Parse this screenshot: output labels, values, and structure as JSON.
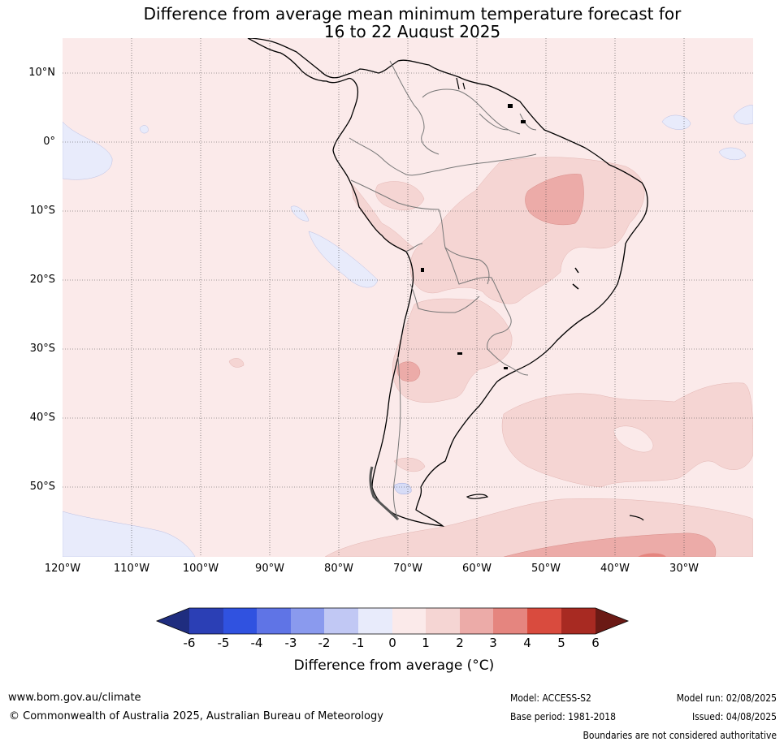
{
  "title": {
    "line1": "Difference from average mean minimum temperature forecast for",
    "line2": "16 to 22 August 2025"
  },
  "map": {
    "region": "South America",
    "latitude_labels": [
      "10°N",
      "0°",
      "10°S",
      "20°S",
      "30°S",
      "40°S",
      "50°S"
    ],
    "longitude_labels": [
      "120°W",
      "110°W",
      "100°W",
      "90°W",
      "80°W",
      "70°W",
      "60°W",
      "50°W",
      "40°W",
      "30°W"
    ],
    "background_anomaly_color": "#fbeaea"
  },
  "colorbar": {
    "ticks": [
      "-6",
      "-5",
      "-4",
      "-3",
      "-2",
      "-1",
      "0",
      "1",
      "2",
      "3",
      "4",
      "5",
      "6"
    ],
    "colors": [
      "#1f2d7f",
      "#2b3fb5",
      "#3052e0",
      "#5f74e6",
      "#8a9aee",
      "#c1c8f4",
      "#e8ebfb",
      "#fbeaea",
      "#f5d5d3",
      "#ecaba8",
      "#e5857f",
      "#d94b3e",
      "#a82a22",
      "#6b1a15"
    ],
    "label": "Difference from average (°C)"
  },
  "footer": {
    "website": "www.bom.gov.au/climate",
    "copyright": "© Commonwealth of Australia 2025, Australian Bureau of Meteorology",
    "model": "Model: ACCESS-S2",
    "base_period": "Base period: 1981-2018",
    "model_run": "Model run: 02/08/2025",
    "issued": "Issued: 04/08/2025",
    "disclaimer": "Boundaries are not considered authoritative"
  }
}
